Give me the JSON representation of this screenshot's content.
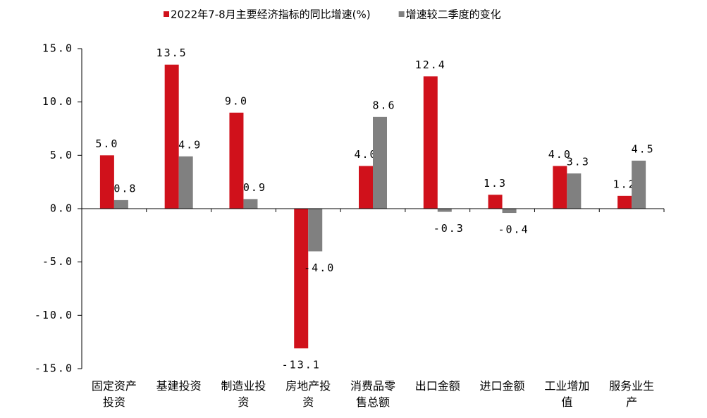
{
  "chart_data": {
    "type": "bar",
    "categories": [
      "固定资产投资",
      "基建投资",
      "制造业投资",
      "房地产投资",
      "消费品零售总额",
      "出口金额",
      "进口金额",
      "工业增加值",
      "服务业生产"
    ],
    "series": [
      {
        "name": "2022年7-8月主要经济指标的同比增速(%)",
        "color": "#d0111b",
        "values": [
          5.0,
          13.5,
          9.0,
          -13.1,
          4.0,
          12.4,
          1.3,
          4.0,
          1.2
        ],
        "value_labels": [
          "5.0",
          "13.5",
          "9.0",
          "-13.1",
          "4.0",
          "12.4",
          "1.3",
          "4.0",
          "1.2"
        ]
      },
      {
        "name": "增速较二季度的变化",
        "color": "#808080",
        "values": [
          0.8,
          4.9,
          0.9,
          -4.0,
          8.6,
          -0.3,
          -0.4,
          3.3,
          4.5
        ],
        "value_labels": [
          "0.8",
          "4.9",
          "0.9",
          "-4.0",
          "8.6",
          "-0.3",
          "-0.4",
          "3.3",
          "4.5"
        ]
      }
    ],
    "ylim": [
      -15,
      15
    ],
    "yticks": [
      {
        "value": -15,
        "label": "-15.0"
      },
      {
        "value": -10,
        "label": "-10.0"
      },
      {
        "value": -5,
        "label": "-5.0"
      },
      {
        "value": 0,
        "label": "0.0"
      },
      {
        "value": 5,
        "label": "5.0"
      },
      {
        "value": 10,
        "label": "10.0"
      },
      {
        "value": 15,
        "label": "15.0"
      }
    ],
    "legend": "top"
  }
}
